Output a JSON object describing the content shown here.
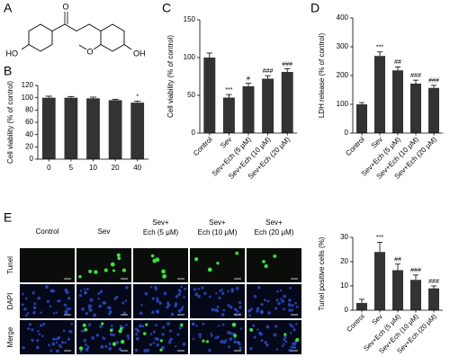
{
  "panel_labels": [
    "A",
    "B",
    "C",
    "D",
    "E"
  ],
  "structure": {
    "labels": [
      "O",
      "HO",
      "O",
      "OH"
    ]
  },
  "micrographs": {
    "columns": [
      [
        "Control"
      ],
      [
        "Sev"
      ],
      [
        "Sev+",
        "Ech (5 μM)"
      ],
      [
        "Sev+",
        "Ech (10 μM)"
      ],
      [
        "Sev+",
        "Ech (20 μM)"
      ]
    ],
    "rows": [
      "Tunel",
      "DAPI",
      "Merge"
    ]
  },
  "chart_data": [
    {
      "type": "bar",
      "ylabel": "Cell viability (% of control)",
      "categories": [
        "0",
        "5",
        "10",
        "20",
        "40"
      ],
      "values": [
        100,
        100,
        99,
        96,
        92
      ],
      "errors": [
        2.5,
        2,
        2,
        1.5,
        2.5
      ],
      "annotations": [
        null,
        null,
        null,
        null,
        "*"
      ],
      "color": "#333333",
      "ylim": [
        0,
        120
      ],
      "yticks": [
        0,
        20,
        40,
        60,
        80,
        100,
        120
      ]
    },
    {
      "type": "bar",
      "ylabel": "Cell viability (% of control)",
      "categories": [
        "Control",
        "Sev",
        "Sev+Ech (5 μM)",
        "Sev+Ech (10 μM)",
        "Sev+Ech (20 μM)"
      ],
      "values": [
        100,
        47,
        62,
        72,
        81
      ],
      "errors": [
        6,
        4,
        4,
        4,
        4
      ],
      "annotations": [
        null,
        "***",
        "#",
        "###",
        "###"
      ],
      "color": "#333333",
      "ylim": [
        0,
        150
      ],
      "yticks": [
        0,
        50,
        100,
        150
      ]
    },
    {
      "type": "bar",
      "ylabel": "LDH release (% of control)",
      "categories": [
        "Control",
        "Sev",
        "Sev+Ech (5 μM)",
        "Sev+Ech (10 μM)",
        "Sev+Ech (20 μM)"
      ],
      "values": [
        100,
        268,
        218,
        172,
        157
      ],
      "errors": [
        6,
        14,
        12,
        12,
        9
      ],
      "annotations": [
        null,
        "***",
        "##",
        "###",
        "###"
      ],
      "color": "#333333",
      "ylim": [
        0,
        400
      ],
      "yticks": [
        0,
        100,
        200,
        300,
        400
      ]
    },
    {
      "type": "bar",
      "ylabel": "Tunel positive cells (%)",
      "categories": [
        "Control",
        "Sev",
        "Sev+Ech (5 μM)",
        "Sev+Ech (10 μM)",
        "Sev+Ech (20 μM)"
      ],
      "values": [
        3,
        24,
        16.5,
        12.5,
        9
      ],
      "errors": [
        1.5,
        4,
        2.5,
        2,
        1
      ],
      "annotations": [
        null,
        "***",
        "##",
        "###",
        "###"
      ],
      "color": "#333333",
      "ylim": [
        0,
        30
      ],
      "yticks": [
        0,
        10,
        20,
        30
      ]
    }
  ]
}
